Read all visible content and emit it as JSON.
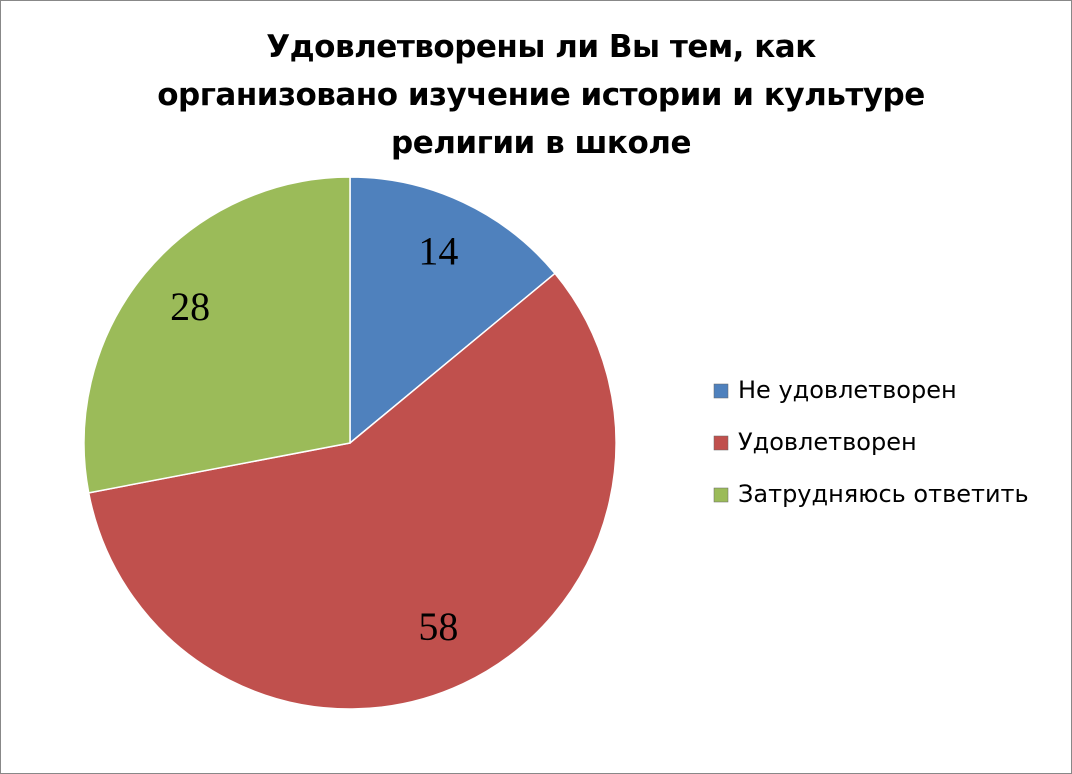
{
  "chart_data": {
    "type": "pie",
    "title": "Удовлетворены ли Вы тем, как организовано изучение истории и культуре религии в школе",
    "categories": [
      "Не удовлетворен",
      "Удовлетворен",
      "Затрудняюсь ответить"
    ],
    "values": [
      14,
      58,
      28
    ],
    "colors": [
      "#4f81bd",
      "#c0504d",
      "#9bbb59"
    ],
    "legend": "right"
  }
}
